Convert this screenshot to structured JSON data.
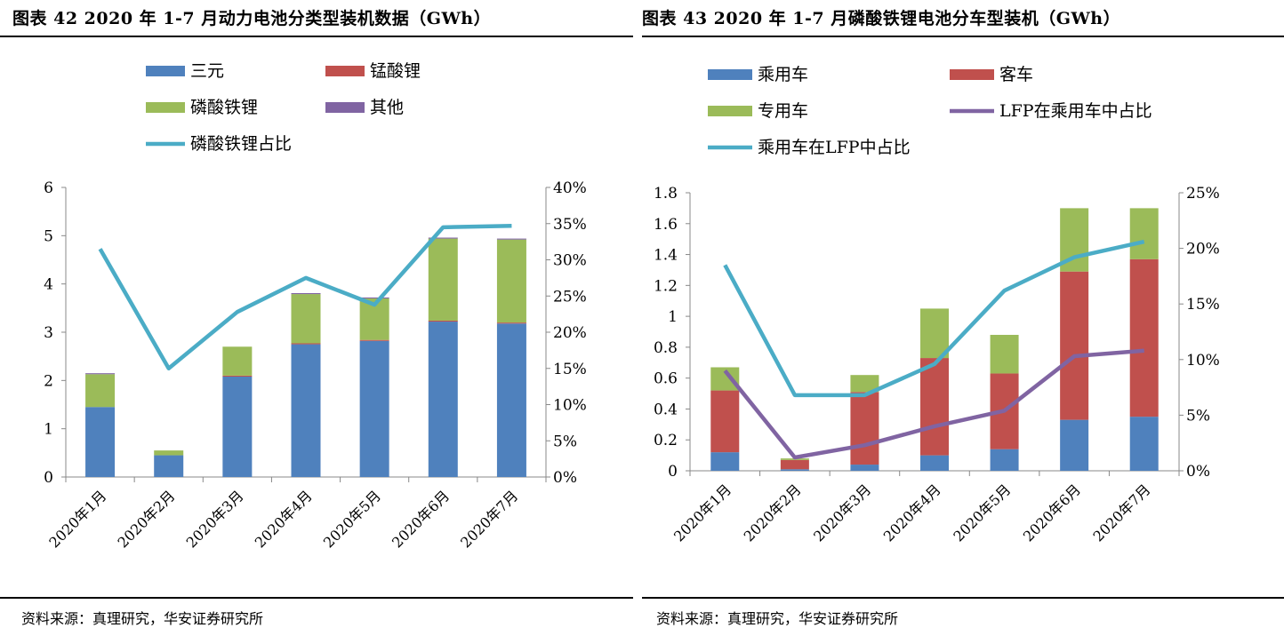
{
  "chart_data": [
    {
      "type": "bar",
      "title": "图表 42 2020 年 1-7 月动力电池分类型装机数据（GWh）",
      "source": "资料来源：真理研究，华安证券研究所",
      "categories": [
        "2020年1月",
        "2020年2月",
        "2020年3月",
        "2020年4月",
        "2020年5月",
        "2020年6月",
        "2020年7月"
      ],
      "stacked": true,
      "series": [
        {
          "name": "三元",
          "kind": "bar",
          "color": "#4f81bd",
          "values": [
            1.45,
            0.45,
            2.08,
            2.75,
            2.82,
            3.22,
            3.18
          ]
        },
        {
          "name": "锰酸锂",
          "kind": "bar",
          "color": "#c0504d",
          "values": [
            0.0,
            0.0,
            0.02,
            0.02,
            0.02,
            0.02,
            0.02
          ]
        },
        {
          "name": "磷酸铁锂",
          "kind": "bar",
          "color": "#9bbb59",
          "values": [
            0.68,
            0.1,
            0.6,
            1.02,
            0.86,
            1.7,
            1.72
          ]
        },
        {
          "name": "其他",
          "kind": "bar",
          "color": "#8064a2",
          "values": [
            0.02,
            0.0,
            0.0,
            0.02,
            0.02,
            0.02,
            0.02
          ]
        },
        {
          "name": "磷酸铁锂占比",
          "kind": "line",
          "axis": "right",
          "color": "#4bacc6",
          "values": [
            31.5,
            15.0,
            22.8,
            27.5,
            23.8,
            34.5,
            34.7
          ]
        }
      ],
      "legend": [
        "三元",
        "锰酸锂",
        "磷酸铁锂",
        "其他",
        "磷酸铁锂占比"
      ],
      "ylim": [
        0,
        6
      ],
      "yticks": [
        "0",
        "1",
        "2",
        "3",
        "4",
        "5",
        "6"
      ],
      "y2lim": [
        0,
        40
      ],
      "y2ticks": [
        "0%",
        "5%",
        "10%",
        "15%",
        "20%",
        "25%",
        "30%",
        "35%",
        "40%"
      ]
    },
    {
      "type": "bar",
      "title": "图表 43 2020 年 1-7 月磷酸铁锂电池分车型装机（GWh）",
      "source": "资料来源：真理研究，华安证券研究所",
      "categories": [
        "2020年1月",
        "2020年2月",
        "2020年3月",
        "2020年4月",
        "2020年5月",
        "2020年6月",
        "2020年7月"
      ],
      "stacked": true,
      "series": [
        {
          "name": "乘用车",
          "kind": "bar",
          "color": "#4f81bd",
          "values": [
            0.12,
            0.01,
            0.04,
            0.1,
            0.14,
            0.33,
            0.35
          ]
        },
        {
          "name": "客车",
          "kind": "bar",
          "color": "#c0504d",
          "values": [
            0.4,
            0.06,
            0.47,
            0.63,
            0.49,
            0.96,
            1.02
          ]
        },
        {
          "name": "专用车",
          "kind": "bar",
          "color": "#9bbb59",
          "values": [
            0.15,
            0.01,
            0.11,
            0.32,
            0.25,
            0.41,
            0.33
          ]
        },
        {
          "name": "LFP在乘用车中占比",
          "kind": "line",
          "axis": "right",
          "color": "#8064a2",
          "values": [
            9.0,
            1.2,
            2.3,
            4.0,
            5.4,
            10.3,
            10.8
          ]
        },
        {
          "name": "乘用车在LFP中占比",
          "kind": "line",
          "axis": "right",
          "color": "#4bacc6",
          "values": [
            18.5,
            6.8,
            6.8,
            9.6,
            16.2,
            19.2,
            20.6
          ]
        }
      ],
      "legend": [
        "乘用车",
        "客车",
        "专用车",
        "LFP在乘用车中占比",
        "乘用车在LFP中占比"
      ],
      "ylim": [
        0,
        1.8
      ],
      "yticks": [
        "0",
        "0.2",
        "0.4",
        "0.6",
        "0.8",
        "1",
        "1.2",
        "1.4",
        "1.6",
        "1.8"
      ],
      "y2lim": [
        0,
        25
      ],
      "y2ticks": [
        "0%",
        "5%",
        "10%",
        "15%",
        "20%",
        "25%"
      ]
    }
  ]
}
